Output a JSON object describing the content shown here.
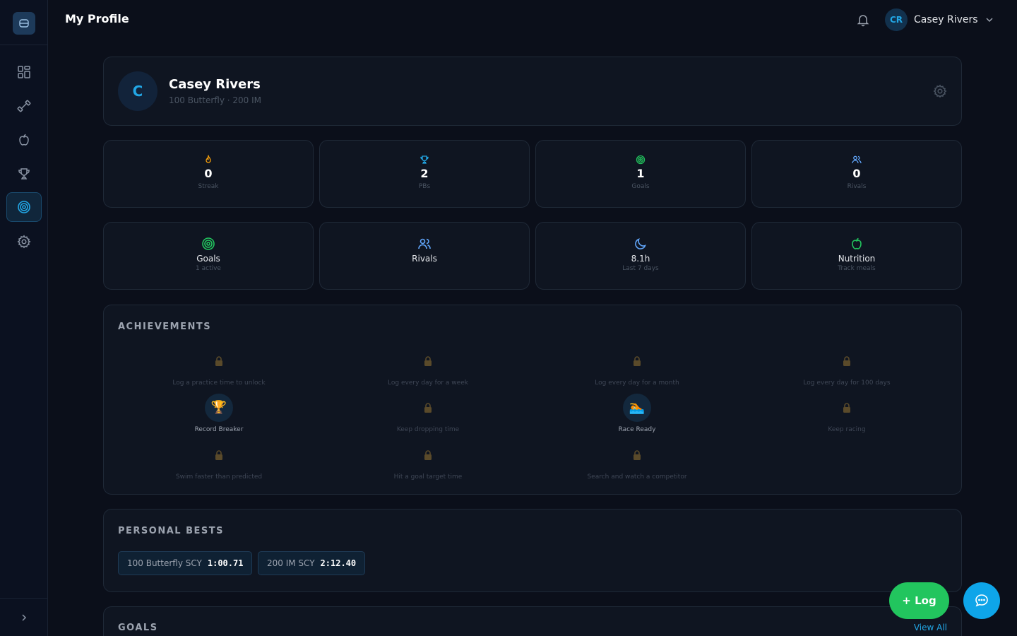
{
  "header": {
    "title": "My Profile",
    "user_initials": "CR",
    "user_name": "Casey Rivers"
  },
  "sidebar": {
    "items": [
      {
        "icon": "dashboard-icon"
      },
      {
        "icon": "dumbbell-icon"
      },
      {
        "icon": "apple-icon"
      },
      {
        "icon": "trophy-icon"
      },
      {
        "icon": "target-icon",
        "active": true
      },
      {
        "icon": "gear-icon"
      }
    ]
  },
  "profile": {
    "initial": "C",
    "name": "Casey Rivers",
    "subtitle": "100 Butterfly · 200 IM"
  },
  "stats": [
    {
      "value": "0",
      "label": "Streak",
      "icon": "flame-icon",
      "color": "#f59e0b"
    },
    {
      "value": "2",
      "label": "PBs",
      "icon": "trophy-icon",
      "color": "#22a7e6"
    },
    {
      "value": "1",
      "label": "Goals",
      "icon": "target-icon",
      "color": "#22c55e"
    },
    {
      "value": "0",
      "label": "Rivals",
      "icon": "users-icon",
      "color": "#60a5fa"
    }
  ],
  "tiles": [
    {
      "title": "Goals",
      "subtitle": "1 active",
      "icon": "target-icon",
      "color": "#22c55e"
    },
    {
      "title": "Rivals",
      "subtitle": "",
      "icon": "users-icon",
      "color": "#60a5fa"
    },
    {
      "title": "8.1h",
      "subtitle": "Last 7 days",
      "icon": "moon-icon",
      "color": "#60a5fa"
    },
    {
      "title": "Nutrition",
      "subtitle": "Track meals",
      "icon": "apple-icon",
      "color": "#22c55e"
    }
  ],
  "achievements": {
    "title": "ACHIEVEMENTS",
    "items": [
      {
        "label": "Log a practice time to unlock",
        "earned": false
      },
      {
        "label": "Log every day for a week",
        "earned": false
      },
      {
        "label": "Log every day for a month",
        "earned": false
      },
      {
        "label": "Log every day for 100 days",
        "earned": false
      },
      {
        "label": "Record Breaker",
        "earned": true,
        "emoji": "🏆"
      },
      {
        "label": "Keep dropping time",
        "earned": false
      },
      {
        "label": "Race Ready",
        "earned": true,
        "emoji": "🏊"
      },
      {
        "label": "Keep racing",
        "earned": false
      },
      {
        "label": "Swim faster than predicted",
        "earned": false
      },
      {
        "label": "Hit a goal target time",
        "earned": false
      },
      {
        "label": "Search and watch a competitor",
        "earned": false
      }
    ]
  },
  "personal_bests": {
    "title": "PERSONAL BESTS",
    "items": [
      {
        "event": "100 Butterfly SCY",
        "time": "1:00.71"
      },
      {
        "event": "200 IM SCY",
        "time": "2:12.40"
      }
    ]
  },
  "goals": {
    "title": "GOALS",
    "view_all": "View All"
  },
  "fab": {
    "log_label": "+ Log"
  }
}
